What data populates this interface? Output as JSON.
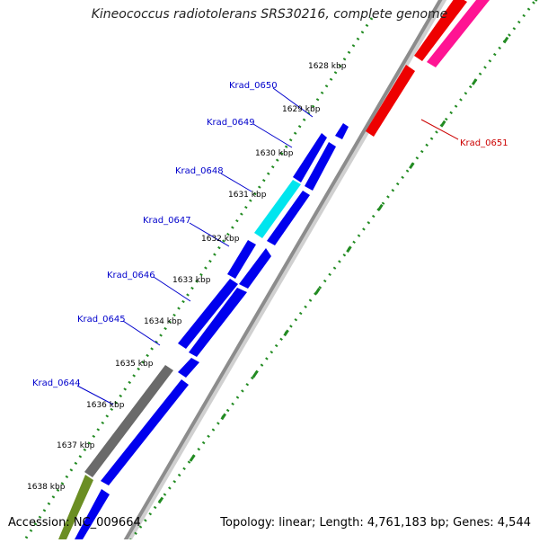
{
  "title": "Kineococcus radiotolerans SRS30216, complete genome",
  "accession": "Accession: NC_009664",
  "summary": "Topology: linear; Length: 4,761,183 bp; Genes: 4,544",
  "ticks": [
    "1628 kbp",
    "1629 kbp",
    "1630 kbp",
    "1631 kbp",
    "1632 kbp",
    "1633 kbp",
    "1634 kbp",
    "1635 kbp",
    "1636 kbp",
    "1637 kbp",
    "1638 kbp"
  ],
  "genes": [
    {
      "label": "Krad_0650",
      "color": "#0000cc"
    },
    {
      "label": "Krad_0649",
      "color": "#0000cc"
    },
    {
      "label": "Krad_0648",
      "color": "#0000cc"
    },
    {
      "label": "Krad_0647",
      "color": "#0000cc"
    },
    {
      "label": "Krad_0646",
      "color": "#0000cc"
    },
    {
      "label": "Krad_0645",
      "color": "#0000cc"
    },
    {
      "label": "Krad_0644",
      "color": "#0000cc"
    },
    {
      "label": "Krad_0651",
      "color": "#cc0000"
    }
  ],
  "colors": {
    "cds_blue": "#0000ee",
    "cds_cyan": "#00e5ee",
    "cds_gray": "#6a6a6a",
    "cds_olive": "#6b8e23",
    "cds_red": "#ee0000",
    "cds_pink": "#ff1493",
    "scale_green": "#228b22",
    "backbone_gray": "#8c8c8c"
  }
}
